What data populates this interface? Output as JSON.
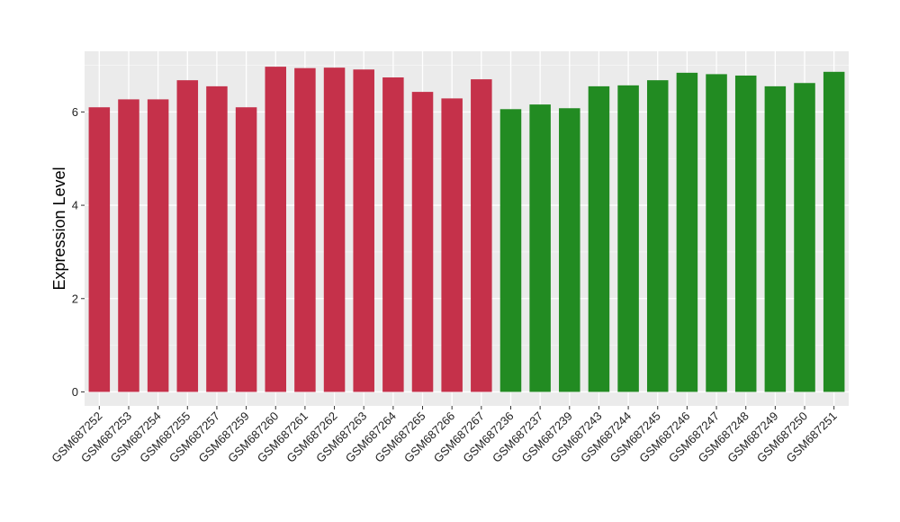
{
  "chart_data": {
    "type": "bar",
    "title": "",
    "xlabel": "",
    "ylabel": "Expression Level",
    "ylim": [
      -0.3,
      7.3
    ],
    "yticks": [
      0,
      2,
      4,
      6
    ],
    "grid": true,
    "categories": [
      "GSM687252",
      "GSM687253",
      "GSM687254",
      "GSM687255",
      "GSM687257",
      "GSM687259",
      "GSM687260",
      "GSM687261",
      "GSM687262",
      "GSM687263",
      "GSM687264",
      "GSM687265",
      "GSM687266",
      "GSM687267",
      "GSM687236",
      "GSM687237",
      "GSM687239",
      "GSM687243",
      "GSM687244",
      "GSM687245",
      "GSM687246",
      "GSM687247",
      "GSM687248",
      "GSM687249",
      "GSM687250",
      "GSM687251"
    ],
    "values": [
      6.1,
      6.27,
      6.27,
      6.68,
      6.55,
      6.1,
      6.97,
      6.94,
      6.95,
      6.91,
      6.74,
      6.43,
      6.29,
      6.7,
      6.06,
      6.16,
      6.08,
      6.55,
      6.57,
      6.68,
      6.84,
      6.81,
      6.78,
      6.55,
      6.62,
      6.86
    ],
    "groups": [
      0,
      0,
      0,
      0,
      0,
      0,
      0,
      0,
      0,
      0,
      0,
      0,
      0,
      0,
      1,
      1,
      1,
      1,
      1,
      1,
      1,
      1,
      1,
      1,
      1,
      1
    ],
    "group_colors": [
      "#C5314A",
      "#228B22"
    ]
  }
}
